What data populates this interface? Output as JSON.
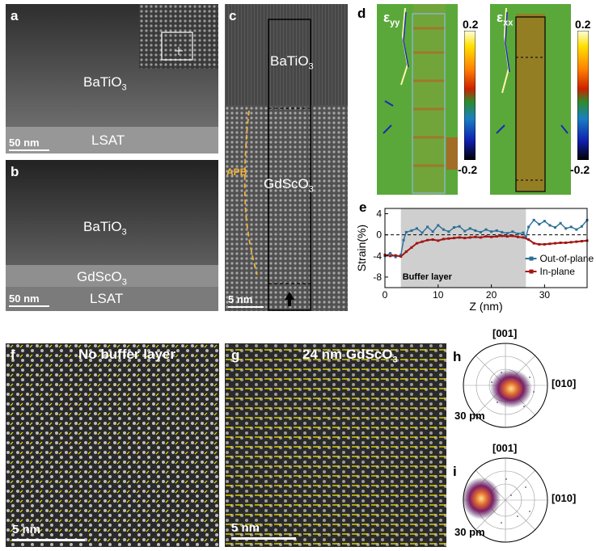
{
  "panels": {
    "a": {
      "letter": "a",
      "film": "BaTiO",
      "film_sub": "3",
      "substrate": "LSAT",
      "scale": "50 nm"
    },
    "b": {
      "letter": "b",
      "film": "BaTiO",
      "film_sub": "3",
      "buffer": "GdScO",
      "buffer_sub": "3",
      "substrate": "LSAT",
      "scale": "50 nm"
    },
    "c": {
      "letter": "c",
      "film": "BaTiO",
      "film_sub": "3",
      "buffer": "GdScO",
      "buffer_sub": "3",
      "apb": "APB",
      "scale": "5 nm"
    },
    "d": {
      "letter": "d",
      "left_map": {
        "symbol": "ε",
        "sub": "yy"
      },
      "right_map": {
        "symbol": "ε",
        "sub": "xx"
      },
      "colorbar_max": "0.2",
      "colorbar_min": "-0.2"
    },
    "f": {
      "letter": "f",
      "label": "No buffer layer",
      "scale": "5 nm"
    },
    "g": {
      "letter": "g",
      "label": "24 nm GdScO",
      "label_sub": "3",
      "scale": "5 nm"
    },
    "h": {
      "letter": "h",
      "top": "[001]",
      "right": "[010]",
      "radius": "30 pm"
    },
    "i": {
      "letter": "i",
      "top": "[001]",
      "right": "[010]",
      "radius": "30 pm"
    }
  },
  "chart_data": {
    "type": "line",
    "letter": "e",
    "xlabel": "Z (nm)",
    "ylabel": "Strain(%)",
    "xlim": [
      0,
      38
    ],
    "ylim": [
      -10,
      5
    ],
    "xticks": [
      0,
      10,
      20,
      30
    ],
    "yticks": [
      4,
      0,
      -4,
      -8
    ],
    "shaded_region": {
      "x0": 3,
      "x1": 26.5,
      "label": "Buffer layer"
    },
    "reference_line": 0,
    "series": [
      {
        "name": "Out-of-plane",
        "color": "#2a6f97",
        "x": [
          0,
          1,
          2,
          3,
          3.5,
          4,
          5,
          6,
          7,
          8,
          9,
          10,
          11,
          12,
          13,
          14,
          15,
          16,
          17,
          18,
          19,
          20,
          21,
          22,
          23,
          24,
          25,
          26,
          26.5,
          27,
          28,
          29,
          30,
          31,
          32,
          33,
          34,
          35,
          36,
          37,
          38
        ],
        "y": [
          -4,
          -3.5,
          -4.2,
          -3.8,
          -1,
          0.5,
          0.8,
          1.2,
          0.4,
          1.5,
          0.6,
          1.8,
          1.0,
          0.6,
          1.4,
          1.6,
          0.7,
          1.2,
          0.8,
          0.5,
          1.0,
          0.6,
          0.8,
          0.5,
          0.3,
          0.6,
          0.2,
          0.4,
          -0.5,
          1.5,
          2.8,
          2.0,
          2.6,
          1.8,
          1.4,
          2.2,
          1.2,
          1.5,
          1.0,
          1.6,
          2.8
        ]
      },
      {
        "name": "In-plane",
        "color": "#a31515",
        "x": [
          0,
          1,
          2,
          3,
          4,
          5,
          6,
          7,
          8,
          9,
          10,
          11,
          12,
          13,
          14,
          15,
          16,
          17,
          18,
          19,
          20,
          21,
          22,
          23,
          24,
          25,
          26,
          27,
          28,
          29,
          30,
          31,
          32,
          33,
          34,
          35,
          36,
          37,
          38
        ],
        "y": [
          -3.8,
          -4,
          -3.9,
          -4.1,
          -3.2,
          -2.4,
          -1.6,
          -1.3,
          -1.0,
          -0.9,
          -1.1,
          -0.8,
          -0.7,
          -0.6,
          -0.5,
          -0.6,
          -0.5,
          -0.4,
          -0.5,
          -0.3,
          -0.4,
          -0.3,
          -0.2,
          -0.3,
          -0.2,
          -0.4,
          -0.5,
          -0.9,
          -1.6,
          -1.8,
          -1.8,
          -1.7,
          -1.6,
          -1.5,
          -1.5,
          -1.4,
          -1.3,
          -1.2,
          -1.1
        ]
      }
    ]
  }
}
